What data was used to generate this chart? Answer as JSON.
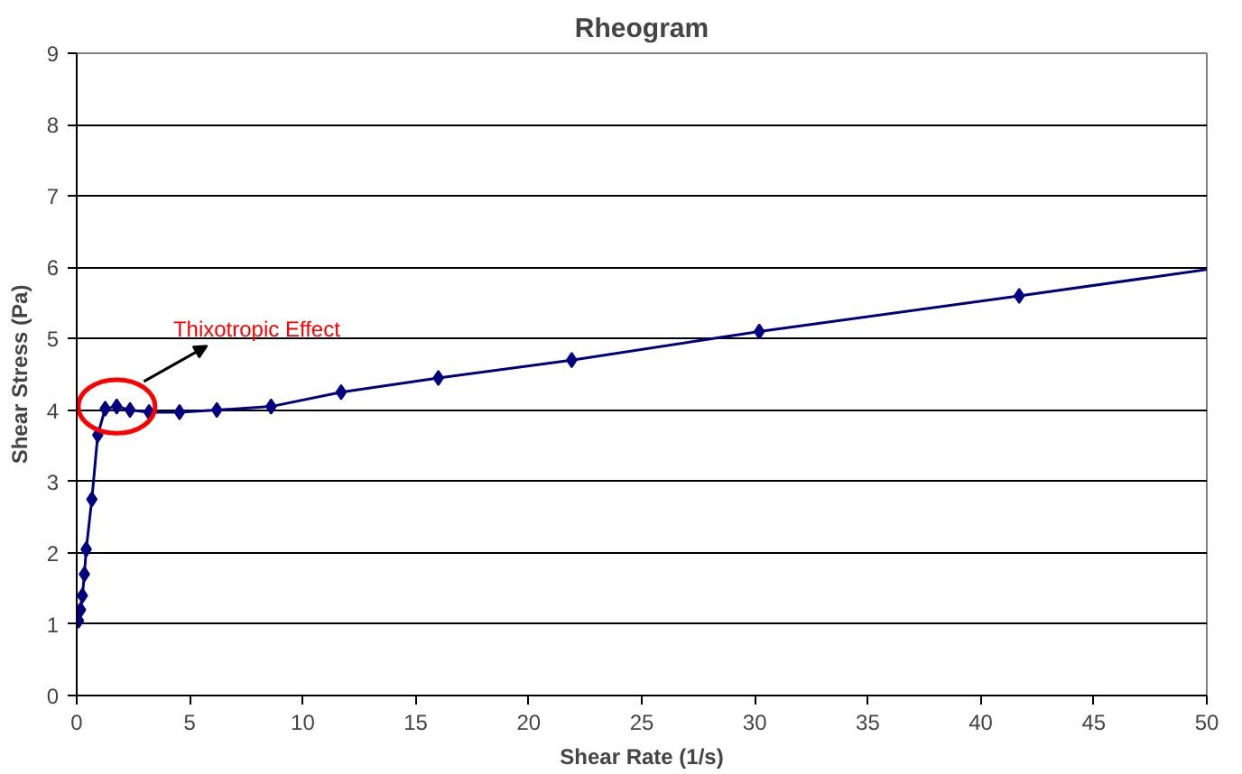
{
  "chart_data": {
    "type": "line",
    "title": "Rheogram",
    "xlabel": "Shear Rate (1/s)",
    "ylabel": "Shear Stress (Pa)",
    "xlim": [
      0,
      50
    ],
    "ylim": [
      0,
      9
    ],
    "xticks": [
      0,
      5,
      10,
      15,
      20,
      25,
      30,
      35,
      40,
      45,
      50
    ],
    "yticks": [
      0,
      1,
      2,
      3,
      4,
      5,
      6,
      7,
      8,
      9
    ],
    "grid": "y",
    "marker": "diamond",
    "line_style": "solid",
    "annotations": [
      "Thixotropic Effect"
    ],
    "series": [
      {
        "color": "#000080",
        "x": [
          0.08,
          0.17,
          0.25,
          0.34,
          0.42,
          0.67,
          0.93,
          1.26,
          1.77,
          2.36,
          3.2,
          4.55,
          6.2,
          8.6,
          11.7,
          16.0,
          21.9,
          30.2,
          41.7
        ],
        "values": [
          1.05,
          1.2,
          1.4,
          1.7,
          2.05,
          2.75,
          3.65,
          4.02,
          4.05,
          4.0,
          3.97,
          3.97,
          4.0,
          4.05,
          4.25,
          4.45,
          4.7,
          5.1,
          5.6
        ]
      },
      {
        "color": "#000080",
        "marker": "none",
        "x": [
          41.7,
          50
        ],
        "values": [
          5.6,
          5.97
        ]
      }
    ]
  }
}
